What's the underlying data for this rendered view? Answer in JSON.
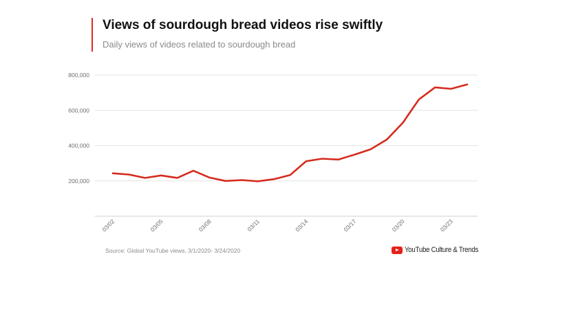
{
  "chart_data": {
    "type": "line",
    "title": "Views of sourdough bread videos rise swiftly",
    "subtitle": "Daily views of videos related to sourdough bread",
    "xlabel": "",
    "ylabel": "",
    "x": [
      "03/02",
      "03/03",
      "03/04",
      "03/05",
      "03/06",
      "03/07",
      "03/08",
      "03/09",
      "03/10",
      "03/11",
      "03/12",
      "03/13",
      "03/14",
      "03/15",
      "03/16",
      "03/17",
      "03/18",
      "03/19",
      "03/20",
      "03/21",
      "03/22",
      "03/23",
      "03/24"
    ],
    "x_tick_labels": [
      "03/02",
      "03/05",
      "03/08",
      "03/11",
      "03/14",
      "03/17",
      "03/20",
      "03/23"
    ],
    "series": [
      {
        "name": "Daily views",
        "color": "#d52b1e",
        "values": [
          243000,
          236000,
          217000,
          231000,
          217000,
          258000,
          219000,
          200000,
          205000,
          198000,
          210000,
          233000,
          312000,
          326000,
          321000,
          349000,
          379000,
          434000,
          529000,
          662000,
          730000,
          722000,
          747000
        ]
      }
    ],
    "ylim": [
      0,
      800000
    ],
    "y_ticks": [
      200000,
      400000,
      600000,
      800000
    ],
    "y_tick_labels": [
      "200,000",
      "400,000",
      "600,000",
      "800,000"
    ],
    "grid": true,
    "legend": "none"
  },
  "source": "Source: Global YouTube views, 3/1/2020- 3/24/2020",
  "brand": "YouTube Culture & Trends",
  "accent": "#e0281d"
}
